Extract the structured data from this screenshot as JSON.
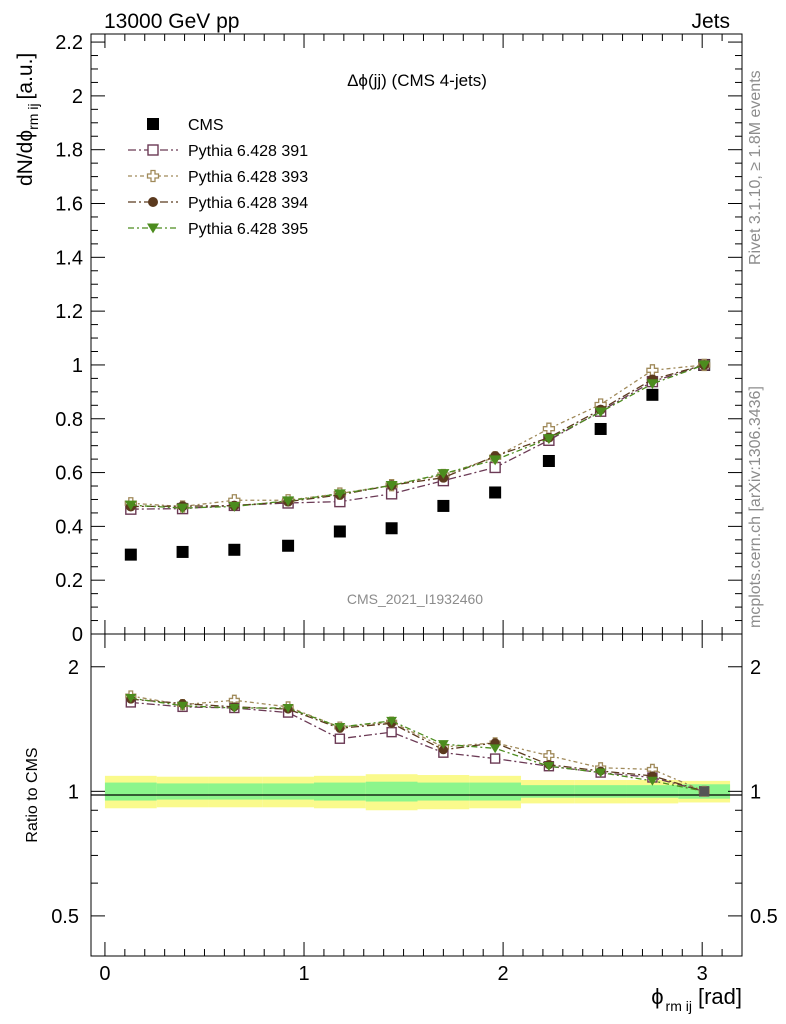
{
  "header": {
    "left": "13000 GeV pp",
    "right": "Jets"
  },
  "side_texts": {
    "rivet": "Rivet 3.1.10, ≥ 1.8M events",
    "mcplots": "mcplots.cern.ch [arXiv:1306.3436]"
  },
  "chart_data": {
    "type": "scatter",
    "title": "Δϕ(jj) (CMS 4-jets)",
    "watermark": "CMS_2021_I1932460",
    "xlabel": "ϕ",
    "xlabel_sub": "rm ij",
    "xlabel_unit": "[rad]",
    "ylabel": "dN/dϕ",
    "ylabel_sub": "rm ij",
    "ylabel_unit": "[a.u.]",
    "ratio_ylabel": "Ratio to CMS",
    "xlim": [
      -0.07,
      3.2
    ],
    "ylim": [
      0,
      2.23
    ],
    "ratio_ylim": [
      0.4,
      2.4
    ],
    "x_ticks": [
      "0",
      "1",
      "2",
      "3"
    ],
    "y_ticks": [
      "0",
      "0.2",
      "0.4",
      "0.6",
      "0.8",
      "1",
      "1.2",
      "1.4",
      "1.6",
      "1.8",
      "2",
      "2.2"
    ],
    "ratio_y_ticks": [
      "0.5",
      "1",
      "2"
    ],
    "x": [
      0.13,
      0.39,
      0.65,
      0.92,
      1.18,
      1.44,
      1.7,
      1.96,
      2.23,
      2.49,
      2.75,
      3.01
    ],
    "series": [
      {
        "name": "CMS",
        "marker": "filled-square",
        "color": "#000000",
        "values": [
          0.295,
          0.305,
          0.313,
          0.328,
          0.381,
          0.393,
          0.476,
          0.526,
          0.643,
          0.762,
          0.889,
          1.0
        ]
      },
      {
        "name": "Pythia 6.428 391",
        "marker": "open-square",
        "color": "#6b3a55",
        "values": [
          0.464,
          0.466,
          0.478,
          0.487,
          0.492,
          0.521,
          0.57,
          0.619,
          0.72,
          0.828,
          0.938,
          1.0
        ]
      },
      {
        "name": "Pythia 6.428 393",
        "marker": "open-cross",
        "color": "#a08a5a",
        "values": [
          0.486,
          0.474,
          0.497,
          0.497,
          0.522,
          0.553,
          0.591,
          0.657,
          0.763,
          0.853,
          0.98,
          1.0
        ]
      },
      {
        "name": "Pythia 6.428 394",
        "marker": "filled-circle",
        "color": "#5b3a1e",
        "values": [
          0.474,
          0.475,
          0.477,
          0.492,
          0.517,
          0.553,
          0.581,
          0.661,
          0.73,
          0.834,
          0.946,
          1.0
        ]
      },
      {
        "name": "Pythia 6.428 395",
        "marker": "filled-triangle-down",
        "color": "#4c8c1e",
        "values": [
          0.479,
          0.468,
          0.474,
          0.495,
          0.521,
          0.552,
          0.596,
          0.647,
          0.726,
          0.825,
          0.93,
          1.0
        ]
      }
    ],
    "ratio_series": [
      {
        "name": "Pythia 6.428 391",
        "values": [
          1.64,
          1.6,
          1.59,
          1.55,
          1.34,
          1.39,
          1.24,
          1.2,
          1.15,
          1.11,
          1.08,
          1.0
        ]
      },
      {
        "name": "Pythia 6.428 393",
        "values": [
          1.7,
          1.62,
          1.66,
          1.6,
          1.43,
          1.47,
          1.28,
          1.31,
          1.22,
          1.14,
          1.13,
          1.0
        ]
      },
      {
        "name": "Pythia 6.428 394",
        "values": [
          1.67,
          1.63,
          1.6,
          1.58,
          1.42,
          1.46,
          1.26,
          1.31,
          1.16,
          1.12,
          1.09,
          1.0
        ]
      },
      {
        "name": "Pythia 6.428 395",
        "values": [
          1.68,
          1.61,
          1.59,
          1.59,
          1.43,
          1.48,
          1.3,
          1.27,
          1.15,
          1.11,
          1.06,
          1.0
        ]
      }
    ],
    "ratio_band": {
      "edges": [
        0.0,
        0.26,
        0.52,
        0.79,
        1.05,
        1.31,
        1.57,
        1.83,
        2.09,
        2.36,
        2.62,
        2.88,
        3.14
      ],
      "stat": [
        0.05,
        0.045,
        0.045,
        0.045,
        0.05,
        0.055,
        0.05,
        0.05,
        0.035,
        0.035,
        0.035,
        0.04
      ],
      "total": [
        0.09,
        0.085,
        0.085,
        0.085,
        0.09,
        0.1,
        0.095,
        0.09,
        0.065,
        0.065,
        0.065,
        0.06
      ],
      "stat_color": "#8cf58c",
      "total_color": "#fafa8c"
    }
  }
}
